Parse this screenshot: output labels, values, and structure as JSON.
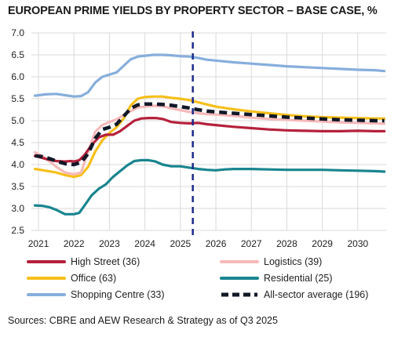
{
  "chart_data": {
    "type": "line",
    "title": "EUROPEAN PRIME YIELDS BY PROPERTY SECTOR – BASE CASE, %",
    "source": "Sources: CBRE and AEW Research & Strategy as of Q3 2025",
    "ylim": [
      2.5,
      7.0
    ],
    "yticks": [
      "7.0",
      "6.5",
      "6.0",
      "5.5",
      "5.0",
      "4.5",
      "4.0",
      "3.5",
      "3.0",
      "2.5"
    ],
    "xlim": [
      2020.8,
      2030.8
    ],
    "xticks": [
      "2021",
      "2022",
      "2023",
      "2024",
      "2025",
      "2026",
      "2027",
      "2028",
      "2029",
      "2030"
    ],
    "forecast_marker_x": 2025.35,
    "grid": true,
    "legend": "bottom",
    "series": [
      {
        "name": "High Street (36)",
        "color": "#b5213b",
        "x": [
          2020.9,
          2021.25,
          2021.5,
          2021.75,
          2021.9,
          2022.0,
          2022.15,
          2022.3,
          2022.5,
          2022.7,
          2022.9,
          2023.1,
          2023.3,
          2023.5,
          2023.7,
          2023.9,
          2024.1,
          2024.3,
          2024.5,
          2024.75,
          2025.0,
          2025.25,
          2025.5,
          2025.75,
          2026.0,
          2026.5,
          2027.0,
          2027.5,
          2028.0,
          2028.5,
          2029.0,
          2029.5,
          2030.0,
          2030.5,
          2030.75
        ],
        "y": [
          4.2,
          4.12,
          4.08,
          4.07,
          4.08,
          4.07,
          4.1,
          4.22,
          4.45,
          4.62,
          4.68,
          4.68,
          4.76,
          4.88,
          5.0,
          5.05,
          5.06,
          5.06,
          5.04,
          4.97,
          4.95,
          4.94,
          4.95,
          4.92,
          4.9,
          4.86,
          4.83,
          4.8,
          4.78,
          4.77,
          4.76,
          4.76,
          4.77,
          4.76,
          4.76
        ]
      },
      {
        "name": "Logistics (39)",
        "color": "#f7b9b9",
        "x": [
          2020.9,
          2021.1,
          2021.3,
          2021.5,
          2021.75,
          2022.0,
          2022.2,
          2022.4,
          2022.6,
          2022.8,
          2023.0,
          2023.2,
          2023.4,
          2023.6,
          2023.8,
          2024.0,
          2024.25,
          2024.5,
          2024.75,
          2025.0,
          2025.25,
          2025.5,
          2025.75,
          2026.0,
          2026.5,
          2027.0,
          2027.5,
          2028.0,
          2028.5,
          2029.0,
          2029.5,
          2030.0,
          2030.5,
          2030.75
        ],
        "y": [
          4.28,
          4.2,
          4.08,
          3.95,
          3.82,
          3.78,
          3.82,
          4.3,
          4.75,
          4.9,
          4.97,
          5.03,
          5.13,
          5.22,
          5.3,
          5.32,
          5.34,
          5.33,
          5.28,
          5.24,
          5.2,
          5.17,
          5.15,
          5.14,
          5.11,
          5.07,
          5.04,
          5.02,
          5.0,
          4.98,
          4.96,
          4.95,
          4.94,
          4.93
        ]
      },
      {
        "name": "Office (63)",
        "color": "#f6bf1a",
        "x": [
          2020.9,
          2021.2,
          2021.5,
          2021.75,
          2022.0,
          2022.2,
          2022.4,
          2022.6,
          2022.8,
          2023.0,
          2023.2,
          2023.4,
          2023.6,
          2023.8,
          2024.0,
          2024.25,
          2024.5,
          2024.75,
          2025.0,
          2025.25,
          2025.5,
          2025.75,
          2026.0,
          2026.5,
          2027.0,
          2027.5,
          2028.0,
          2028.5,
          2029.0,
          2029.5,
          2030.0,
          2030.5,
          2030.75
        ],
        "y": [
          3.9,
          3.86,
          3.82,
          3.76,
          3.72,
          3.76,
          3.95,
          4.3,
          4.55,
          4.72,
          4.85,
          5.05,
          5.35,
          5.5,
          5.54,
          5.55,
          5.55,
          5.52,
          5.5,
          5.47,
          5.42,
          5.37,
          5.32,
          5.26,
          5.21,
          5.17,
          5.13,
          5.1,
          5.08,
          5.07,
          5.06,
          5.05,
          5.05
        ]
      },
      {
        "name": "Residential (25)",
        "color": "#19858f",
        "x": [
          2020.9,
          2021.1,
          2021.3,
          2021.5,
          2021.75,
          2022.0,
          2022.15,
          2022.3,
          2022.5,
          2022.7,
          2022.9,
          2023.1,
          2023.3,
          2023.5,
          2023.7,
          2023.9,
          2024.1,
          2024.3,
          2024.5,
          2024.75,
          2025.0,
          2025.25,
          2025.5,
          2025.75,
          2026.0,
          2026.25,
          2026.5,
          2027.0,
          2027.5,
          2028.0,
          2028.5,
          2029.0,
          2029.5,
          2030.0,
          2030.5,
          2030.75
        ],
        "y": [
          3.07,
          3.06,
          3.03,
          2.97,
          2.87,
          2.87,
          2.9,
          3.07,
          3.3,
          3.45,
          3.55,
          3.72,
          3.85,
          3.98,
          4.08,
          4.1,
          4.1,
          4.07,
          4.0,
          3.96,
          3.96,
          3.93,
          3.9,
          3.88,
          3.87,
          3.89,
          3.9,
          3.9,
          3.89,
          3.88,
          3.88,
          3.88,
          3.87,
          3.86,
          3.85,
          3.84
        ]
      },
      {
        "name": "Shopping Centre (33)",
        "color": "#86aedc",
        "x": [
          2020.9,
          2021.2,
          2021.5,
          2021.75,
          2022.0,
          2022.2,
          2022.4,
          2022.6,
          2022.8,
          2023.0,
          2023.2,
          2023.4,
          2023.6,
          2023.8,
          2024.0,
          2024.25,
          2024.5,
          2024.75,
          2025.0,
          2025.25,
          2025.5,
          2025.75,
          2026.0,
          2026.5,
          2027.0,
          2027.5,
          2028.0,
          2028.5,
          2029.0,
          2029.5,
          2030.0,
          2030.5,
          2030.75
        ],
        "y": [
          5.57,
          5.6,
          5.61,
          5.58,
          5.55,
          5.56,
          5.65,
          5.87,
          6.0,
          6.05,
          6.1,
          6.25,
          6.4,
          6.46,
          6.48,
          6.5,
          6.5,
          6.49,
          6.47,
          6.46,
          6.43,
          6.39,
          6.37,
          6.33,
          6.3,
          6.27,
          6.24,
          6.22,
          6.2,
          6.18,
          6.16,
          6.15,
          6.13
        ]
      },
      {
        "name": "All-sector average (196)",
        "color": "#111827",
        "dashed": true,
        "x": [
          2020.9,
          2021.1,
          2021.3,
          2021.5,
          2021.75,
          2022.0,
          2022.2,
          2022.4,
          2022.6,
          2022.8,
          2023.0,
          2023.2,
          2023.4,
          2023.6,
          2023.8,
          2024.0,
          2024.25,
          2024.5,
          2024.75,
          2025.0,
          2025.25,
          2025.5,
          2025.75,
          2026.0,
          2026.5,
          2027.0,
          2027.5,
          2028.0,
          2028.5,
          2029.0,
          2029.5,
          2030.0,
          2030.5,
          2030.75
        ],
        "y": [
          4.2,
          4.18,
          4.14,
          4.08,
          4.02,
          4.0,
          4.05,
          4.25,
          4.6,
          4.8,
          4.85,
          4.92,
          5.1,
          5.28,
          5.36,
          5.38,
          5.38,
          5.37,
          5.35,
          5.32,
          5.29,
          5.25,
          5.22,
          5.2,
          5.17,
          5.14,
          5.11,
          5.08,
          5.06,
          5.04,
          5.02,
          5.01,
          5.0,
          5.0
        ]
      }
    ]
  }
}
